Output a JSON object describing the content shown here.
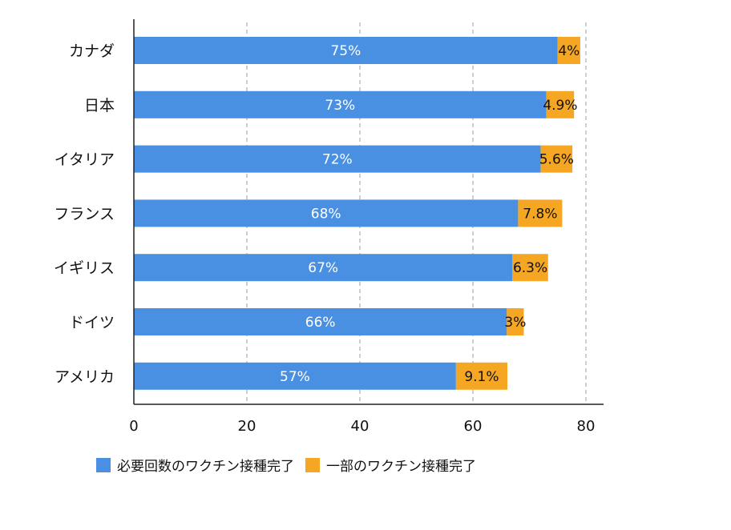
{
  "chart_data": {
    "type": "bar",
    "orientation": "horizontal",
    "stacked": true,
    "categories": [
      "カナダ",
      "日本",
      "イタリア",
      "フランス",
      "イギリス",
      "ドイツ",
      "アメリカ"
    ],
    "series": [
      {
        "name": "必要回数のワクチン接種完了",
        "color": "#4a90e2",
        "values": [
          75,
          73,
          72,
          68,
          67,
          66,
          57
        ],
        "labels": [
          "75%",
          "73%",
          "72%",
          "68%",
          "67%",
          "66%",
          "57%"
        ]
      },
      {
        "name": "一部のワクチン接種完了",
        "color": "#f5a623",
        "values": [
          4,
          4.9,
          5.6,
          7.8,
          6.3,
          3,
          9.1
        ],
        "labels": [
          "4%",
          "4.9%",
          "5.6%",
          "7.8%",
          "6.3%",
          "3%",
          "9.1%"
        ]
      }
    ],
    "xlim": [
      0,
      80
    ],
    "xticks": [
      0,
      20,
      40,
      60,
      80
    ],
    "grid": "vertical-dashed",
    "legend_position": "bottom"
  }
}
